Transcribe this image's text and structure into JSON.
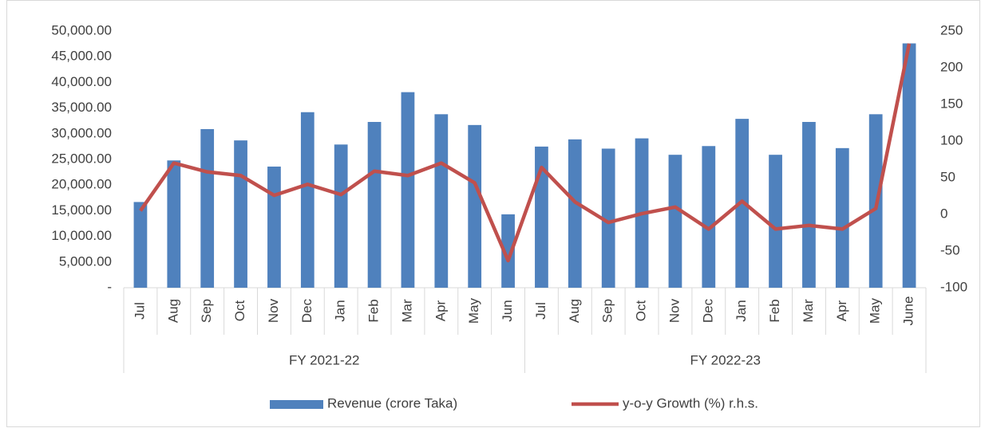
{
  "chart_data": {
    "type": "bar-line",
    "categories": [
      "Jul",
      "Aug",
      "Sep",
      "Oct",
      "Nov",
      "Dec",
      "Jan",
      "Feb",
      "Mar",
      "Apr",
      "May",
      "Jun",
      "Jul",
      "Aug",
      "Sep",
      "Oct",
      "Nov",
      "Dec",
      "Jan",
      "Feb",
      "Mar",
      "Apr",
      "May",
      "June"
    ],
    "groups": [
      "FY 2021-22",
      "FY 2022-23"
    ],
    "series": [
      {
        "name": "Revenue (crore Taka)",
        "type": "bar",
        "color": "#4f81bd",
        "values": [
          16700,
          24800,
          30900,
          28700,
          23600,
          34200,
          27900,
          32300,
          38100,
          33800,
          31700,
          14300,
          27500,
          28900,
          27100,
          29100,
          25900,
          27600,
          32900,
          25900,
          32300,
          27200,
          33800,
          47600
        ]
      },
      {
        "name": "y-o-y Growth (%) r.h.s.",
        "type": "line",
        "axis": "y2",
        "color": "#c0504d",
        "values": [
          5,
          70,
          58,
          53,
          26,
          41,
          27,
          59,
          53,
          70,
          43,
          -63,
          64,
          17,
          -11,
          1,
          10,
          -20,
          18,
          -20,
          -15,
          -20,
          8,
          233
        ]
      }
    ],
    "ylim": [
      0,
      50000
    ],
    "yticks": [
      {
        "value": 0,
        "label": "-"
      },
      {
        "value": 5000,
        "label": "5,000.00"
      },
      {
        "value": 10000,
        "label": "10,000.00"
      },
      {
        "value": 15000,
        "label": "15,000.00"
      },
      {
        "value": 20000,
        "label": "20,000.00"
      },
      {
        "value": 25000,
        "label": "25,000.00"
      },
      {
        "value": 30000,
        "label": "30,000.00"
      },
      {
        "value": 35000,
        "label": "35,000.00"
      },
      {
        "value": 40000,
        "label": "40,000.00"
      },
      {
        "value": 45000,
        "label": "45,000.00"
      },
      {
        "value": 50000,
        "label": "50,000.00"
      }
    ],
    "y2lim": [
      -100,
      250
    ],
    "y2ticks": [
      -100,
      -50,
      0,
      50,
      100,
      150,
      200,
      250
    ],
    "grid": false,
    "legend": "bottom"
  }
}
